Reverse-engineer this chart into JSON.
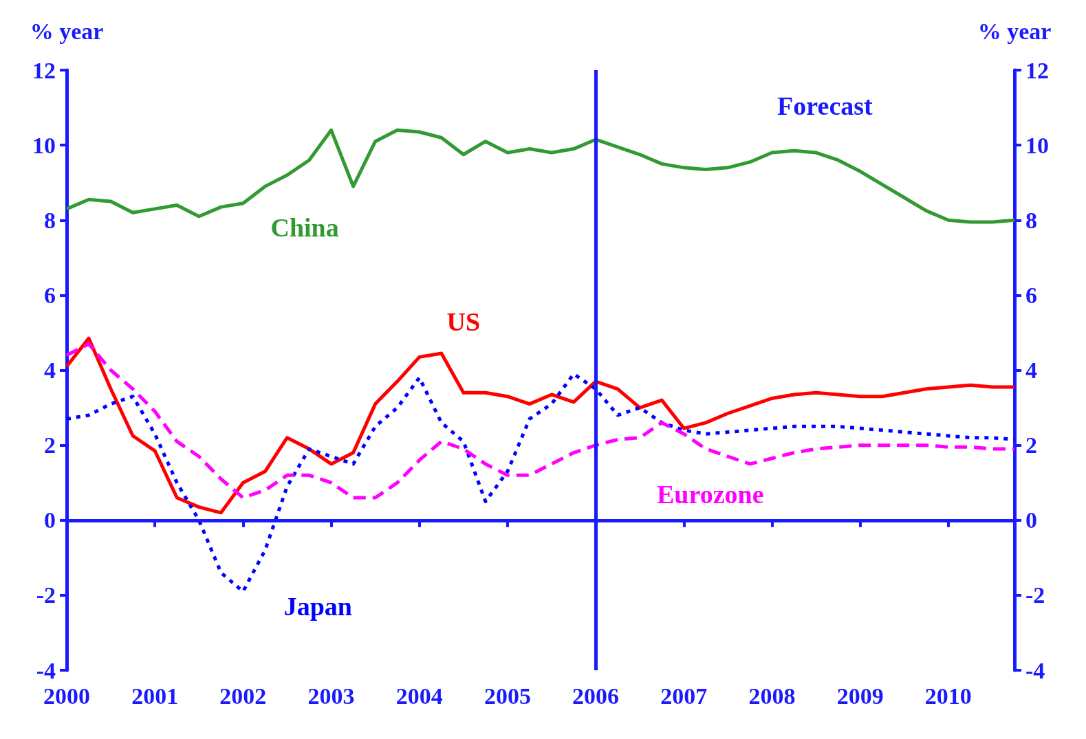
{
  "chart_data": {
    "type": "line",
    "ylabel": "% year",
    "y2label": "% year",
    "annotations": [
      "Forecast"
    ],
    "x": [
      2000,
      2000.25,
      2000.5,
      2000.75,
      2001,
      2001.25,
      2001.5,
      2001.75,
      2002,
      2002.25,
      2002.5,
      2002.75,
      2003,
      2003.25,
      2003.5,
      2003.75,
      2004,
      2004.25,
      2004.5,
      2004.75,
      2005,
      2005.25,
      2005.5,
      2005.75,
      2006,
      2006.25,
      2006.5,
      2006.75,
      2007,
      2007.25,
      2007.5,
      2007.75,
      2008,
      2008.25,
      2008.5,
      2008.75,
      2009,
      2009.25,
      2009.5,
      2009.75,
      2010,
      2010.25,
      2010.5,
      2010.75
    ],
    "series": [
      {
        "name": "China",
        "color": "#339933",
        "line_style": "solid",
        "values": [
          8.3,
          8.55,
          8.5,
          8.2,
          8.3,
          8.4,
          8.1,
          8.35,
          8.45,
          8.9,
          9.2,
          9.6,
          10.4,
          8.9,
          10.1,
          10.4,
          10.35,
          10.2,
          9.75,
          10.1,
          9.8,
          9.9,
          9.8,
          9.9,
          10.15,
          9.95,
          9.75,
          9.5,
          9.4,
          9.35,
          9.4,
          9.55,
          9.8,
          9.85,
          9.8,
          9.6,
          9.3,
          8.95,
          8.6,
          8.25,
          8.0,
          7.95,
          7.95,
          8.0
        ]
      },
      {
        "name": "US",
        "color": "#ff0000",
        "line_style": "solid",
        "values": [
          4.1,
          4.85,
          3.5,
          2.25,
          1.85,
          0.6,
          0.35,
          0.2,
          1.0,
          1.3,
          2.2,
          1.9,
          1.5,
          1.8,
          3.1,
          3.7,
          4.35,
          4.45,
          3.4,
          3.4,
          3.3,
          3.1,
          3.35,
          3.15,
          3.7,
          3.5,
          3.0,
          3.2,
          2.45,
          2.6,
          2.85,
          3.05,
          3.25,
          3.35,
          3.4,
          3.35,
          3.3,
          3.3,
          3.4,
          3.5,
          3.55,
          3.6,
          3.55,
          3.55
        ]
      },
      {
        "name": "Japan",
        "color": "#0000ff",
        "line_style": "dotted",
        "values": [
          2.7,
          2.8,
          3.1,
          3.3,
          2.3,
          1.0,
          0.0,
          -1.4,
          -1.9,
          -0.8,
          0.9,
          1.9,
          1.7,
          1.5,
          2.5,
          3.0,
          3.8,
          2.6,
          2.1,
          0.5,
          1.3,
          2.7,
          3.1,
          3.9,
          3.5,
          2.8,
          3.0,
          2.6,
          2.4,
          2.3,
          2.35,
          2.4,
          2.45,
          2.5,
          2.5,
          2.5,
          2.45,
          2.4,
          2.35,
          2.3,
          2.25,
          2.2,
          2.2,
          2.15
        ]
      },
      {
        "name": "Eurozone",
        "color": "#ff00ff",
        "line_style": "dashed",
        "values": [
          4.4,
          4.7,
          4.0,
          3.5,
          2.9,
          2.1,
          1.7,
          1.1,
          0.6,
          0.8,
          1.2,
          1.2,
          1.0,
          0.6,
          0.6,
          1.0,
          1.6,
          2.1,
          1.9,
          1.5,
          1.2,
          1.2,
          1.5,
          1.8,
          2.0,
          2.15,
          2.2,
          2.6,
          2.3,
          1.9,
          1.7,
          1.5,
          1.65,
          1.8,
          1.9,
          1.95,
          2.0,
          2.0,
          2.0,
          2.0,
          1.95,
          1.95,
          1.9,
          1.9
        ]
      }
    ],
    "xlim": [
      2000,
      2010.75
    ],
    "xticks": [
      2000,
      2001,
      2002,
      2003,
      2004,
      2005,
      2006,
      2007,
      2008,
      2009,
      2010
    ],
    "ylim": [
      -4,
      12
    ],
    "yticks": [
      -4,
      -2,
      0,
      2,
      4,
      6,
      8,
      10,
      12
    ],
    "y2lim": [
      -4,
      12
    ],
    "y2ticks": [
      -4,
      -2,
      0,
      2,
      4,
      6,
      8,
      10,
      12
    ],
    "ref_lines": [
      {
        "axis": "x",
        "value": 2006,
        "color": "#1a1aff"
      },
      {
        "axis": "y",
        "value": 0,
        "color": "#1a1aff"
      }
    ],
    "grid": false,
    "legend": false,
    "marker": "none"
  }
}
